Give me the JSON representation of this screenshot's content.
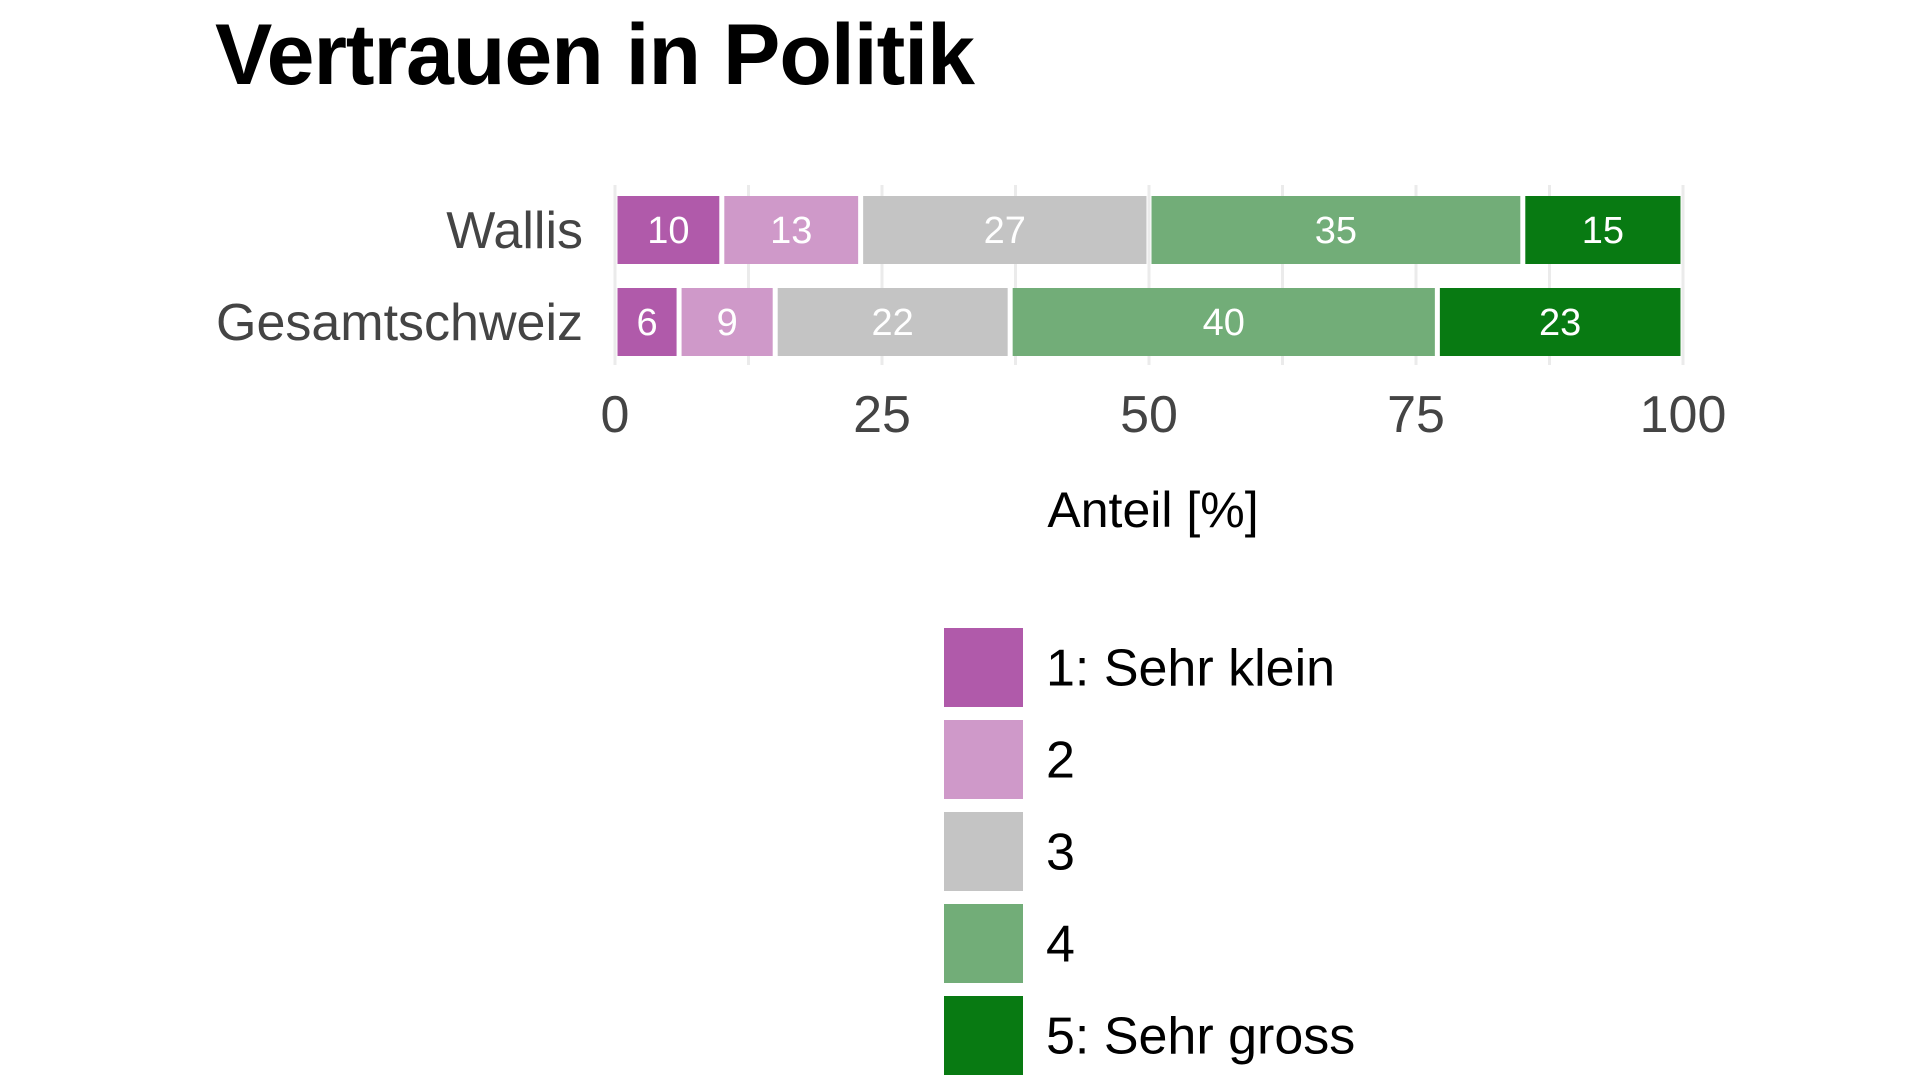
{
  "chart_data": {
    "type": "bar",
    "orientation": "horizontal",
    "stacked": true,
    "title": "Vertrauen in Politik",
    "xlabel": "Anteil [%]",
    "ylabel": "",
    "xlim": [
      0,
      100
    ],
    "x_ticks": [
      "0",
      "25",
      "50",
      "75",
      "100"
    ],
    "categories": [
      "Wallis",
      "Gesamtschweiz"
    ],
    "series": [
      {
        "name": "1: Sehr klein",
        "color": "#b05aaa",
        "values": [
          10,
          6
        ]
      },
      {
        "name": "2",
        "color": "#cf99c9",
        "values": [
          13,
          9
        ]
      },
      {
        "name": "3",
        "color": "#c4c4c4",
        "values": [
          27,
          22
        ]
      },
      {
        "name": "4",
        "color": "#72ad78",
        "values": [
          35,
          40
        ]
      },
      {
        "name": "5: Sehr gross",
        "color": "#087a12",
        "values": [
          15,
          23
        ]
      }
    ],
    "grid": "vertical",
    "legend": "bottom",
    "data_labels": true
  }
}
